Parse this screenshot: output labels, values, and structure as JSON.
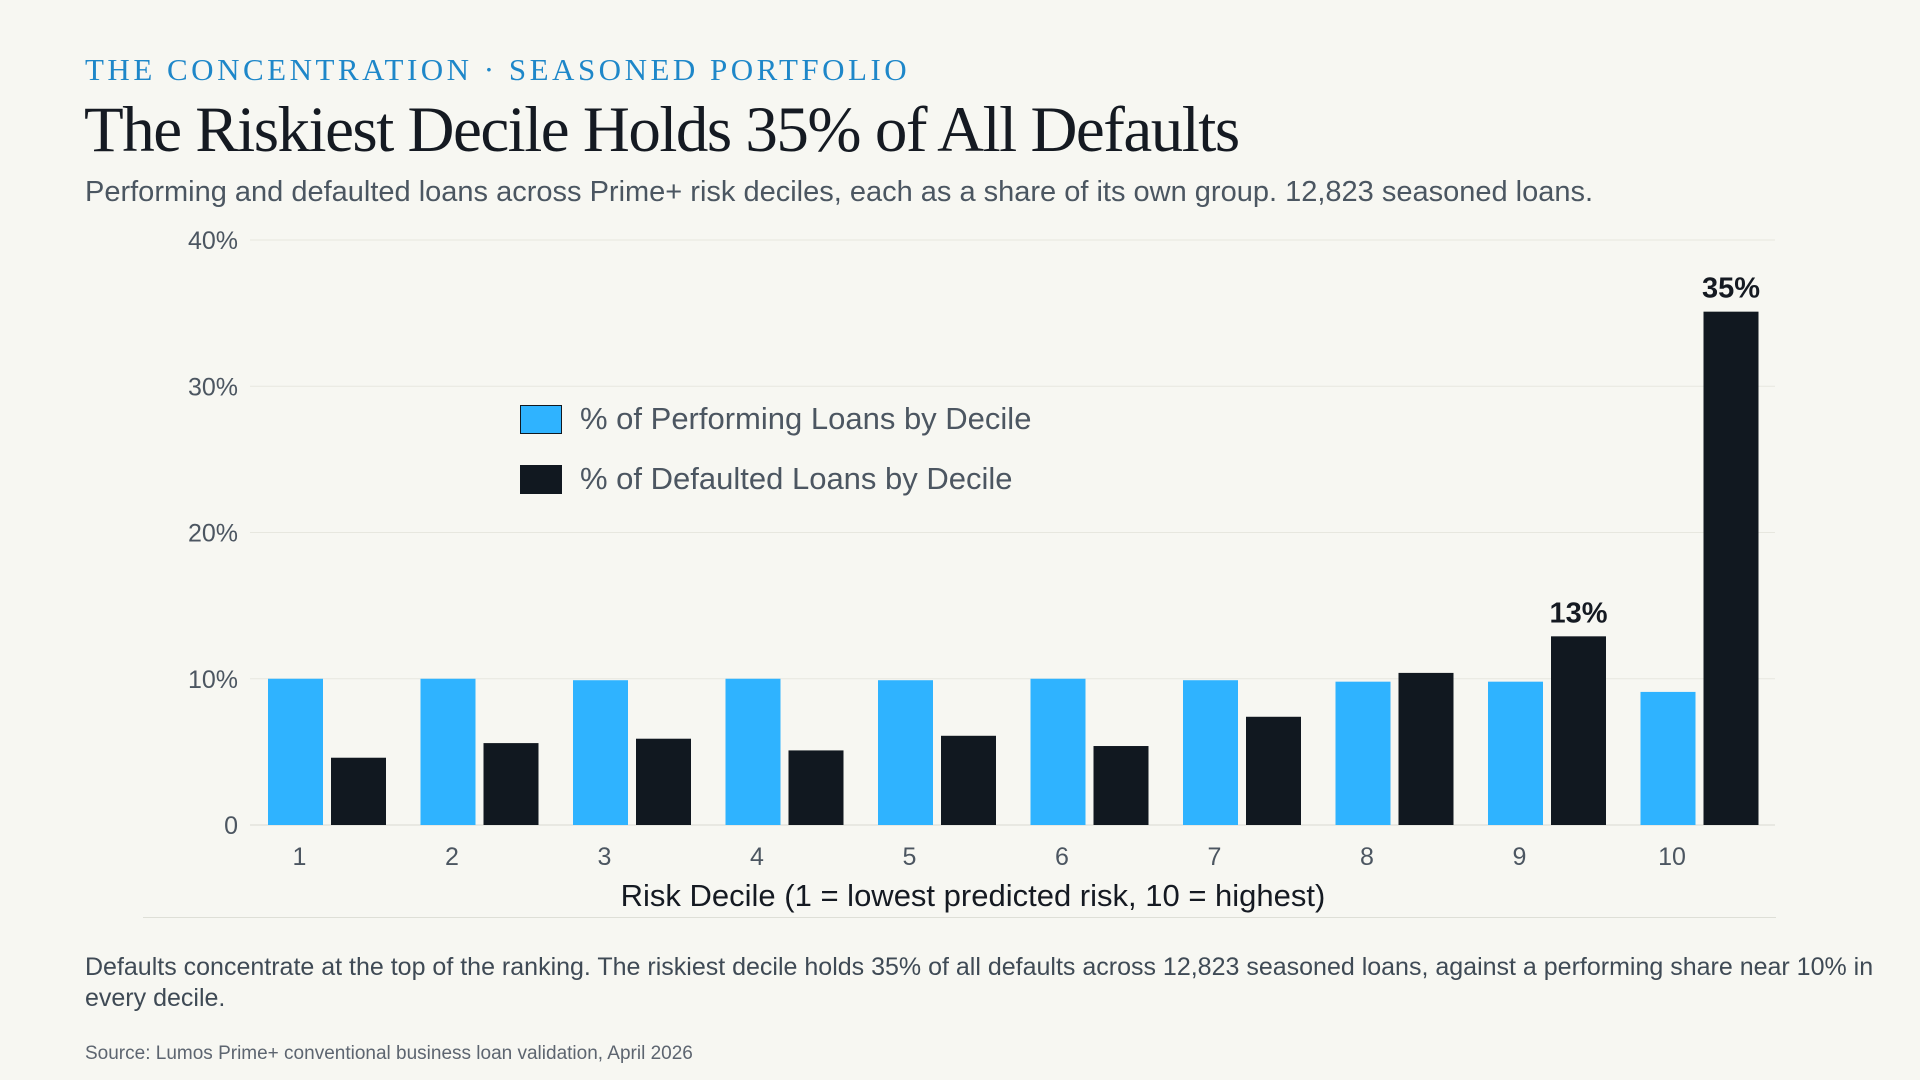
{
  "header": {
    "eyebrow": "THE CONCENTRATION · SEASONED PORTFOLIO",
    "title": "The Riskiest Decile Holds 35% of All Defaults",
    "subtitle": "Performing and defaulted loans across Prime+ risk deciles, each as a share of its own group. 12,823 seasoned loans."
  },
  "footer": {
    "takeaway": "Defaults concentrate at the top of the ranking. The riskiest decile holds 35% of all defaults across 12,823 seasoned loans, against a performing share near 10% in every decile.",
    "source": "Source: Lumos Prime+ conventional business loan validation, April 2026"
  },
  "colors": {
    "performing": "#2fb3ff",
    "defaulted": "#111820",
    "grid": "#e7e7df",
    "axis_text": "#4c5661"
  },
  "chart_data": {
    "type": "bar",
    "categories": [
      "1",
      "2",
      "3",
      "4",
      "5",
      "6",
      "7",
      "8",
      "9",
      "10"
    ],
    "series": [
      {
        "name": "% of Performing Loans by Decile",
        "values": [
          10.0,
          10.0,
          9.9,
          10.0,
          9.9,
          10.0,
          9.9,
          9.8,
          9.8,
          9.1
        ],
        "color": "#2fb3ff"
      },
      {
        "name": "% of Defaulted Loans by Decile",
        "values": [
          4.6,
          5.6,
          5.9,
          5.1,
          6.1,
          5.4,
          7.4,
          10.4,
          12.9,
          35.1
        ],
        "color": "#111820"
      }
    ],
    "title": "The Riskiest Decile Holds 35% of All Defaults",
    "subtitle": "Performing and defaulted loans across Prime+ risk deciles, each as a share of its own group. 12,823 seasoned loans.",
    "xlabel": "Risk Decile (1 = lowest predicted risk, 10 = highest)",
    "ylabel": "",
    "ylim": [
      0,
      40
    ],
    "y_ticks": [
      "0",
      "10%",
      "20%",
      "30%",
      "40%"
    ],
    "grid": true,
    "legend_placement": "upper-left-inside",
    "annotations": [
      {
        "category": "9",
        "series": "% of Defaulted Loans by Decile",
        "text": "13%"
      },
      {
        "category": "10",
        "series": "% of Defaulted Loans by Decile",
        "text": "35%"
      }
    ]
  }
}
